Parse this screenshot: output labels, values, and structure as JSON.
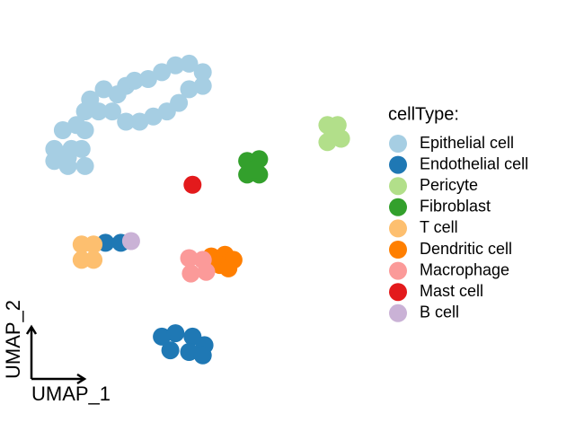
{
  "chart_data": {
    "type": "scatter",
    "x_label": "UMAP_1",
    "y_label": "UMAP_2",
    "legend_title": "cellType:",
    "legend": "right",
    "xlim": [
      -10,
      10
    ],
    "ylim": [
      -10,
      10
    ],
    "series": [
      {
        "name": "Epithelial cell",
        "color": "#a6cee3",
        "x": [
          -8.4,
          -8.4,
          -7.6,
          -7.4,
          -7.9,
          -7.1,
          -6.6,
          -6.3,
          -5.5,
          -4.7,
          -4.2,
          -3.7,
          -2.9,
          -2.1,
          -1.3,
          -0.5,
          0.3,
          0.3,
          -0.5,
          -1.1,
          -1.8,
          -2.6,
          -3.4,
          -4.2,
          -5.0,
          -5.8,
          -6.6,
          -6.8,
          -7.6,
          -6.6
        ],
        "y": [
          3.2,
          3.9,
          2.9,
          3.9,
          5.0,
          5.3,
          6.1,
          6.8,
          7.4,
          7.1,
          7.6,
          7.9,
          8.0,
          8.4,
          8.8,
          8.9,
          8.4,
          7.6,
          7.4,
          6.6,
          6.1,
          5.8,
          5.5,
          5.5,
          6.1,
          6.1,
          5.0,
          3.9,
          3.4,
          2.9
        ]
      },
      {
        "name": "Endothelial cell",
        "color": "#1f78b4",
        "x": [
          -2.1,
          -1.3,
          -0.3,
          0.4,
          -1.6,
          -0.5,
          0.3,
          -5.4,
          -4.5
        ],
        "y": [
          -7.1,
          -6.9,
          -7.1,
          -7.6,
          -7.9,
          -8.0,
          -8.2,
          -1.6,
          -1.6
        ]
      },
      {
        "name": "Pericyte",
        "color": "#b2df8a",
        "x": [
          7.6,
          8.2,
          7.6,
          8.4,
          7.9
        ],
        "y": [
          5.3,
          5.3,
          4.3,
          4.5,
          4.9
        ]
      },
      {
        "name": "Fibroblast",
        "color": "#33a02c",
        "x": [
          2.9,
          3.6,
          2.9,
          3.6,
          3.3
        ],
        "y": [
          3.2,
          3.3,
          2.4,
          2.4,
          2.7
        ]
      },
      {
        "name": "T cell",
        "color": "#fdbf6f",
        "x": [
          -6.8,
          -6.1,
          -6.8,
          -6.1
        ],
        "y": [
          -1.7,
          -1.7,
          -2.6,
          -2.6
        ]
      },
      {
        "name": "Dendritic cell",
        "color": "#ff7f00",
        "x": [
          0.8,
          1.6,
          2.1,
          1.3,
          1.8
        ],
        "y": [
          -2.4,
          -2.3,
          -2.6,
          -2.9,
          -3.1
        ]
      },
      {
        "name": "Macrophage",
        "color": "#fb9a99",
        "x": [
          -0.5,
          0.3,
          -0.4,
          0.5
        ],
        "y": [
          -2.5,
          -2.6,
          -3.4,
          -3.3
        ]
      },
      {
        "name": "Mast cell",
        "color": "#e31a1c",
        "x": [
          -0.3
        ],
        "y": [
          1.8
        ]
      },
      {
        "name": "B cell",
        "color": "#cab2d6",
        "x": [
          -3.9
        ],
        "y": [
          -1.5
        ]
      }
    ]
  }
}
